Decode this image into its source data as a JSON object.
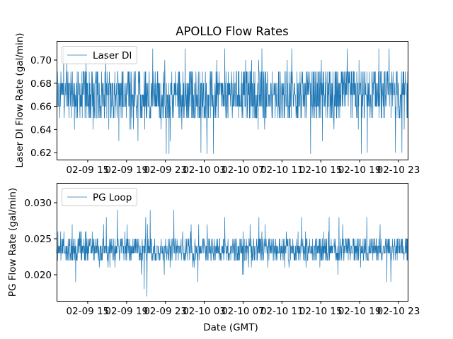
{
  "chart_data": [
    {
      "type": "line",
      "title": "APOLLO Flow Rates",
      "xlabel": "",
      "ylabel": "Laser DI Flow Rate (gal/min)",
      "legend": {
        "entries": [
          "Laser DI"
        ],
        "placement": "top-left"
      },
      "x_range_hours": [
        11.8,
        47.95
      ],
      "x_ticks": [
        {
          "hour": 15,
          "label": "02-09 15"
        },
        {
          "hour": 19,
          "label": "02-09 19"
        },
        {
          "hour": 23,
          "label": "02-09 23"
        },
        {
          "hour": 27,
          "label": "02-10 03"
        },
        {
          "hour": 31,
          "label": "02-10 07"
        },
        {
          "hour": 35,
          "label": "02-10 11"
        },
        {
          "hour": 39,
          "label": "02-10 15"
        },
        {
          "hour": 43,
          "label": "02-10 19"
        },
        {
          "hour": 47,
          "label": "02-10 23"
        }
      ],
      "ylim": [
        0.614,
        0.7165
      ],
      "y_ticks": [
        {
          "value": 0.62,
          "label": "0.62"
        },
        {
          "value": 0.64,
          "label": "0.64"
        },
        {
          "value": 0.66,
          "label": "0.66"
        },
        {
          "value": 0.68,
          "label": "0.68"
        },
        {
          "value": 0.7,
          "label": "0.70"
        }
      ],
      "series": [
        {
          "name": "Laser DI",
          "color": "#1f77b4",
          "typical_min": 0.65,
          "typical_max": 0.69,
          "mean": 0.669,
          "min": 0.619,
          "max": 0.71,
          "step": 0.01,
          "points": 1400
        }
      ],
      "grid": false
    },
    {
      "type": "line",
      "title": "",
      "xlabel": "Date (GMT)",
      "ylabel": "PG Flow Rate (gal/min)",
      "legend": {
        "entries": [
          "PG Loop"
        ],
        "placement": "top-left"
      },
      "x_range_hours": [
        11.8,
        47.95
      ],
      "x_ticks": [
        {
          "hour": 15,
          "label": "02-09 15"
        },
        {
          "hour": 19,
          "label": "02-09 19"
        },
        {
          "hour": 23,
          "label": "02-09 23"
        },
        {
          "hour": 27,
          "label": "02-10 03"
        },
        {
          "hour": 31,
          "label": "02-10 07"
        },
        {
          "hour": 35,
          "label": "02-10 11"
        },
        {
          "hour": 39,
          "label": "02-10 15"
        },
        {
          "hour": 43,
          "label": "02-10 19"
        },
        {
          "hour": 47,
          "label": "02-10 23"
        }
      ],
      "ylim": [
        0.01637,
        0.03275
      ],
      "y_ticks": [
        {
          "value": 0.02,
          "label": "0.020"
        },
        {
          "value": 0.025,
          "label": "0.025"
        },
        {
          "value": 0.03,
          "label": "0.030"
        }
      ],
      "series": [
        {
          "name": "PG Loop",
          "color": "#1f77b4",
          "typical_min": 0.022,
          "typical_max": 0.025,
          "mean": 0.0235,
          "min": 0.017,
          "max": 0.032,
          "step": 0.001,
          "points": 1400
        }
      ],
      "grid": false
    }
  ]
}
